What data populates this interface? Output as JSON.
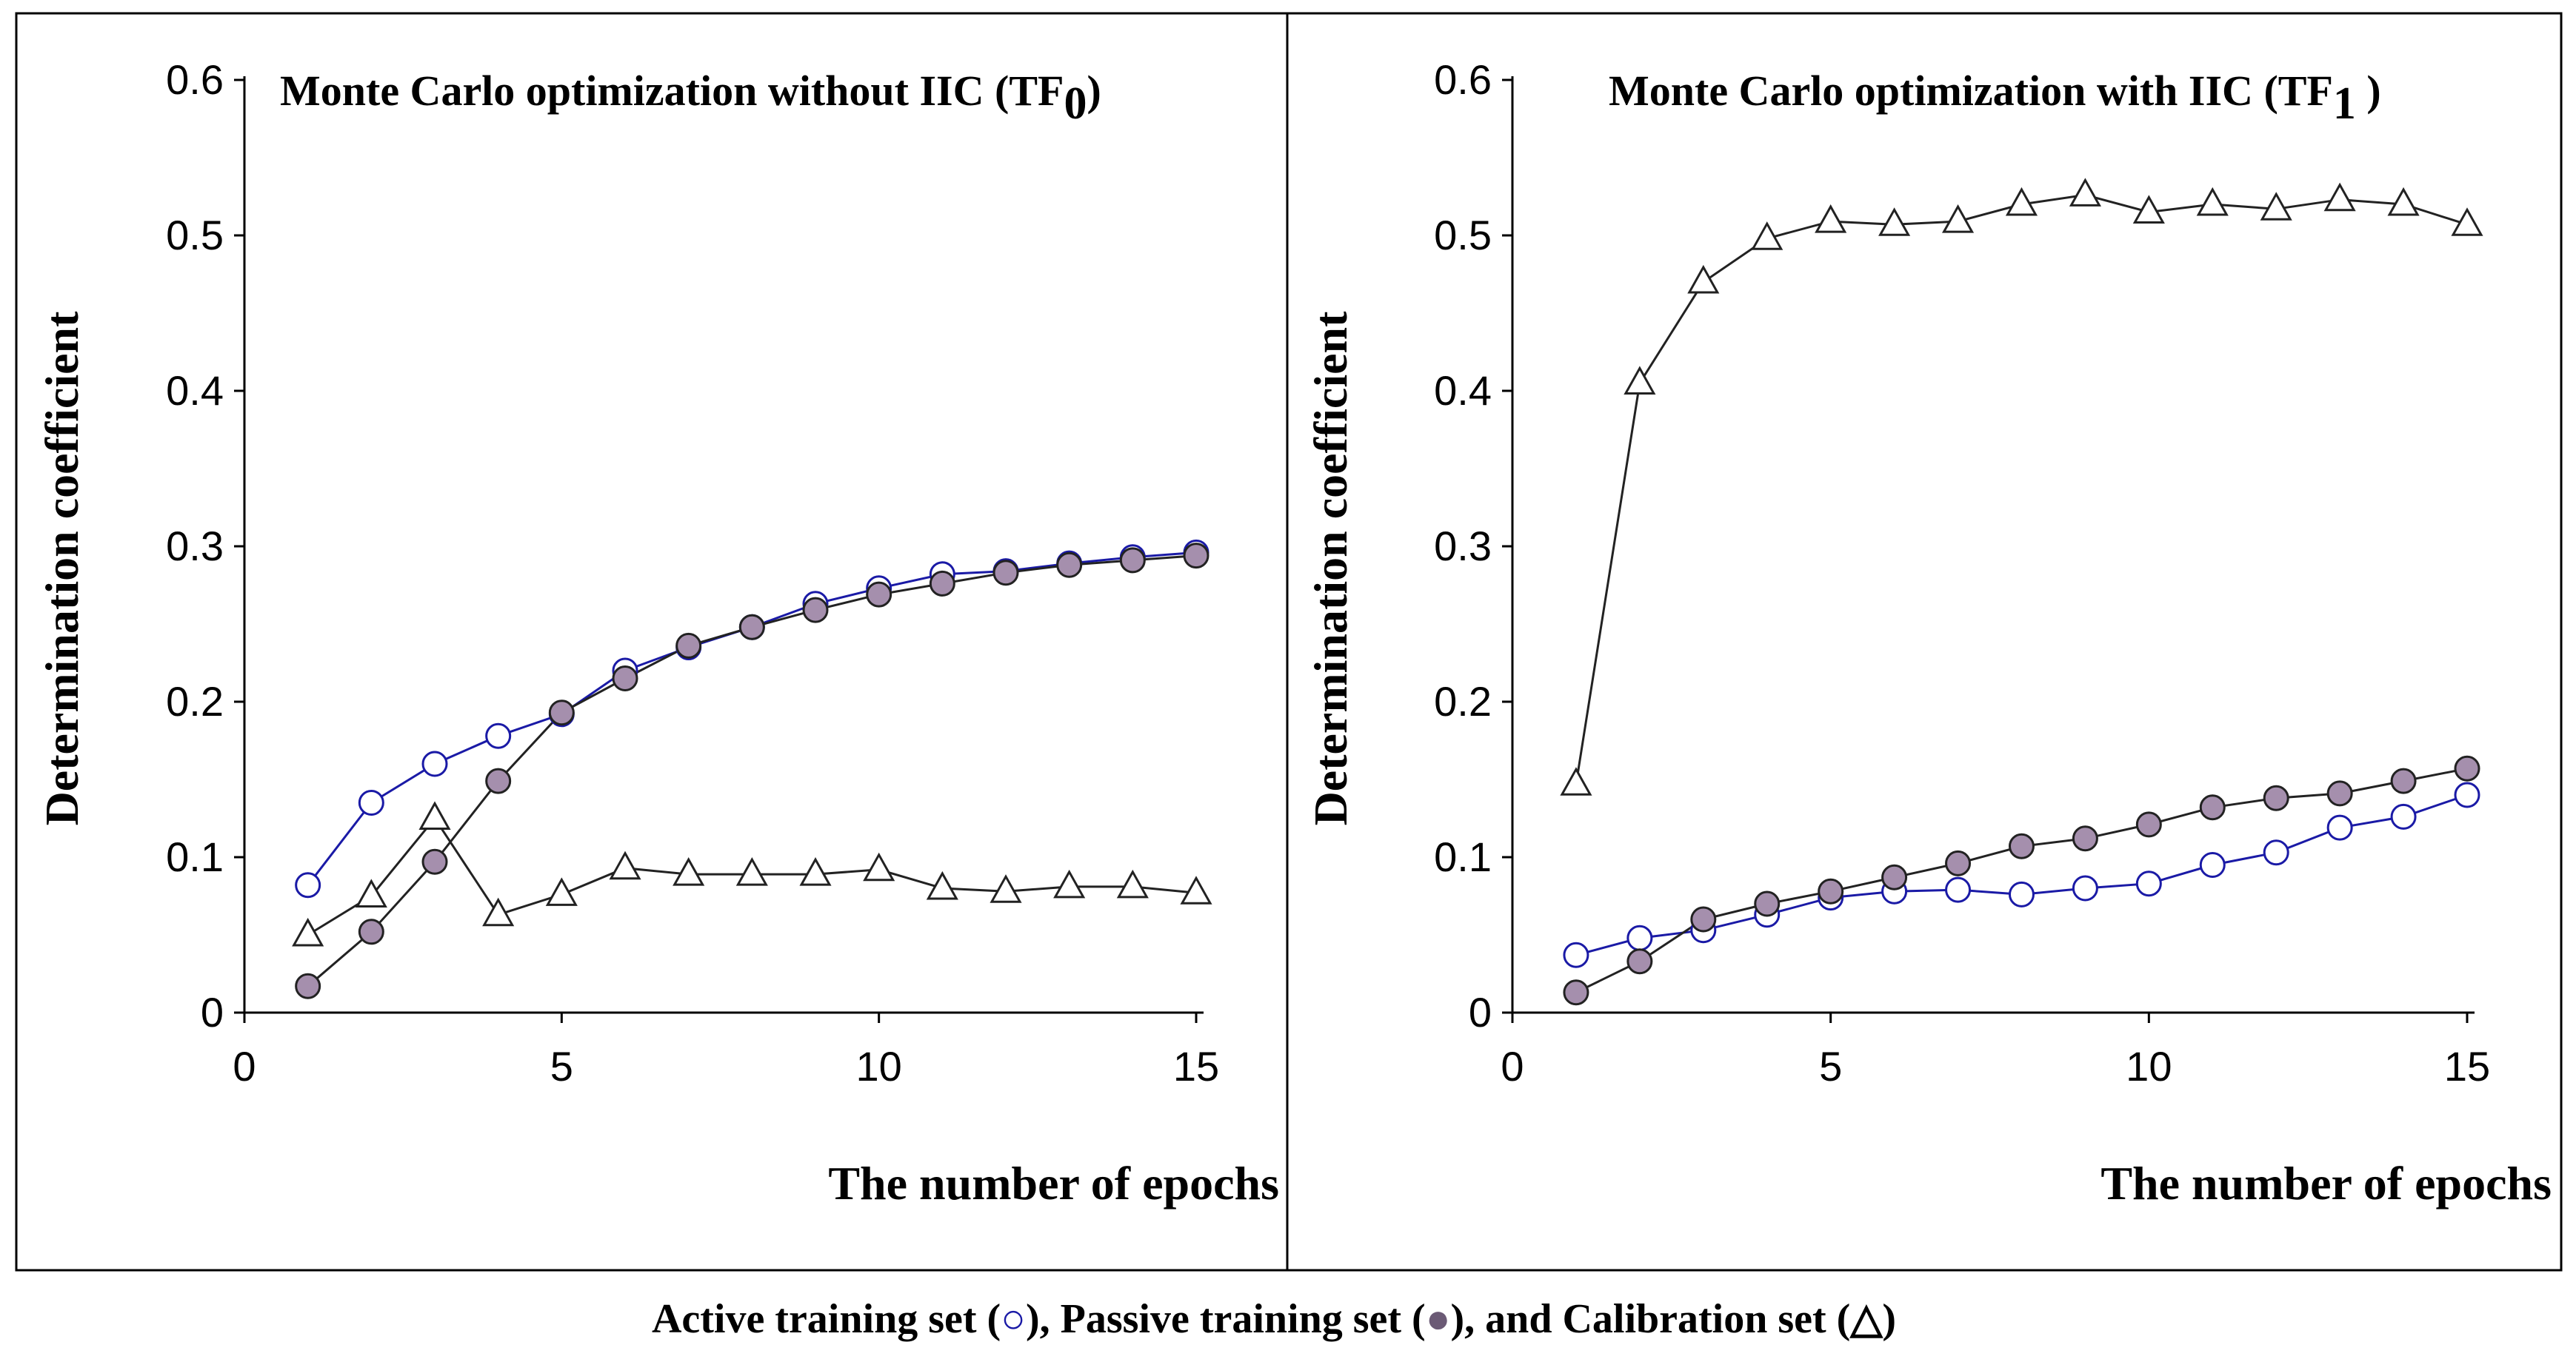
{
  "chart_data": [
    {
      "type": "line",
      "title": "Monte Carlo optimization without IIC (TF",
      "title_subscript": "0",
      "title_close": ")",
      "xlabel": "The number of epochs",
      "ylabel": "Determination coefficient",
      "xlim": [
        0,
        15
      ],
      "ylim": [
        0,
        0.6
      ],
      "xticks": [
        "0",
        "5",
        "10",
        "15"
      ],
      "yticks": [
        "0",
        "0.1",
        "0.2",
        "0.3",
        "0.4",
        "0.5",
        "0.6"
      ],
      "x": [
        1,
        2,
        3,
        4,
        5,
        6,
        7,
        8,
        9,
        10,
        11,
        12,
        13,
        14,
        15
      ],
      "series": [
        {
          "name": "Active training set",
          "marker": "open-circle",
          "color": "#1a1aa6",
          "values": [
            0.082,
            0.135,
            0.16,
            0.178,
            0.192,
            0.22,
            0.235,
            0.248,
            0.263,
            0.273,
            0.282,
            0.284,
            0.289,
            0.293,
            0.296
          ]
        },
        {
          "name": "Passive training set",
          "marker": "filled-circle",
          "color": "#222222",
          "values": [
            0.017,
            0.052,
            0.097,
            0.149,
            0.193,
            0.215,
            0.236,
            0.248,
            0.259,
            0.269,
            0.276,
            0.283,
            0.288,
            0.291,
            0.294
          ]
        },
        {
          "name": "Calibration set",
          "marker": "triangle",
          "color": "#222222",
          "values": [
            0.05,
            0.075,
            0.125,
            0.063,
            0.076,
            0.093,
            0.089,
            0.089,
            0.089,
            0.092,
            0.08,
            0.078,
            0.081,
            0.081,
            0.077
          ]
        }
      ]
    },
    {
      "type": "line",
      "title": "Monte Carlo optimization with IIC (TF",
      "title_subscript": "1",
      "title_close": " )",
      "xlabel": "The number of epochs",
      "ylabel": "Determination coefficient",
      "xlim": [
        0,
        15
      ],
      "ylim": [
        0,
        0.6
      ],
      "xticks": [
        "0",
        "5",
        "10",
        "15"
      ],
      "yticks": [
        "0",
        "0.1",
        "0.2",
        "0.3",
        "0.4",
        "0.5",
        "0.6"
      ],
      "x": [
        1,
        2,
        3,
        4,
        5,
        6,
        7,
        8,
        9,
        10,
        11,
        12,
        13,
        14,
        15
      ],
      "series": [
        {
          "name": "Active training set",
          "marker": "open-circle",
          "color": "#1a1aa6",
          "values": [
            0.037,
            0.048,
            0.053,
            0.063,
            0.074,
            0.078,
            0.079,
            0.076,
            0.08,
            0.083,
            0.095,
            0.103,
            0.119,
            0.126,
            0.14
          ]
        },
        {
          "name": "Passive training set",
          "marker": "filled-circle",
          "color": "#222222",
          "values": [
            0.013,
            0.033,
            0.06,
            0.07,
            0.078,
            0.087,
            0.096,
            0.107,
            0.112,
            0.121,
            0.132,
            0.138,
            0.141,
            0.149,
            0.157
          ]
        },
        {
          "name": "Calibration set",
          "marker": "triangle",
          "color": "#222222",
          "values": [
            0.147,
            0.405,
            0.47,
            0.498,
            0.509,
            0.507,
            0.509,
            0.52,
            0.526,
            0.515,
            0.52,
            0.517,
            0.523,
            0.52,
            0.507
          ]
        }
      ]
    }
  ],
  "legend_caption": {
    "part1": "Active training set (",
    "part2": "),  Passive training set (",
    "part3": "), and Calibration set (",
    "part4": ")"
  },
  "colors": {
    "active": "#1a1aa6",
    "passive_fill": "#a58fad",
    "line": "#222222",
    "frame": "#000000"
  },
  "icons": {
    "active": "open-circle-icon",
    "passive": "filled-circle-icon",
    "calibration": "triangle-icon"
  }
}
